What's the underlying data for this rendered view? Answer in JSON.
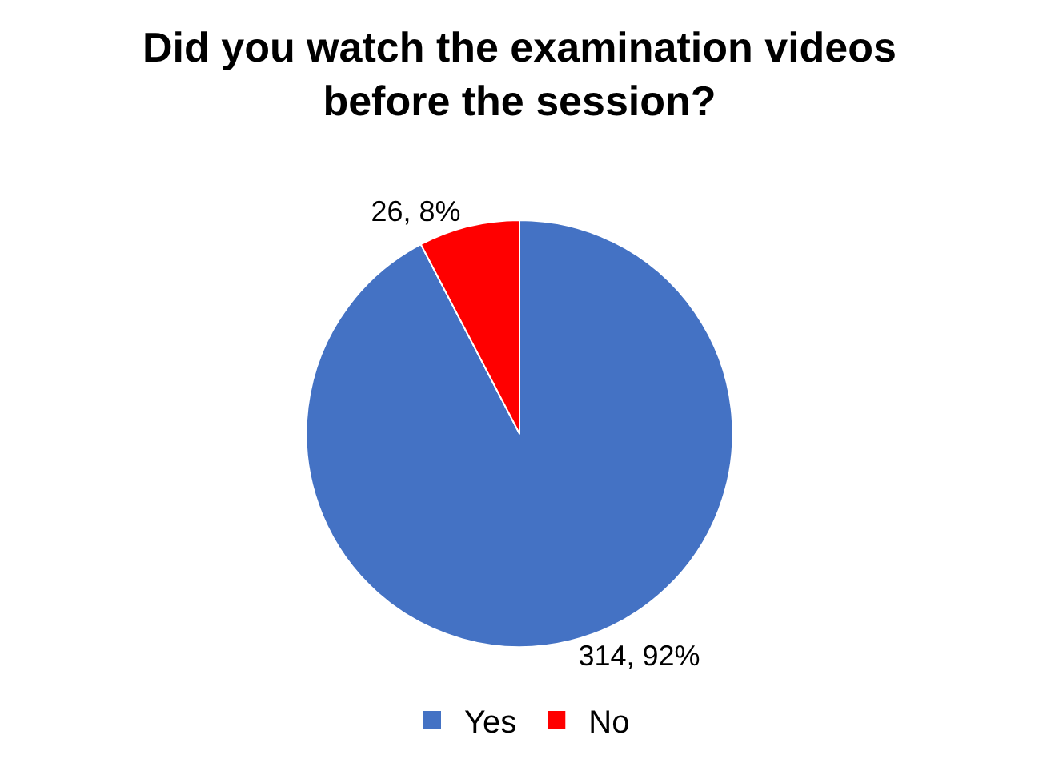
{
  "chart_data": {
    "type": "pie",
    "title": "Did you watch the examination videos before the session?",
    "categories": [
      "Yes",
      "No"
    ],
    "values": [
      314,
      26
    ],
    "colors": [
      "#4472c4",
      "#ff0000"
    ],
    "value_labels": [
      "314, 92%",
      "26, 8%"
    ],
    "legend": "bottom"
  }
}
